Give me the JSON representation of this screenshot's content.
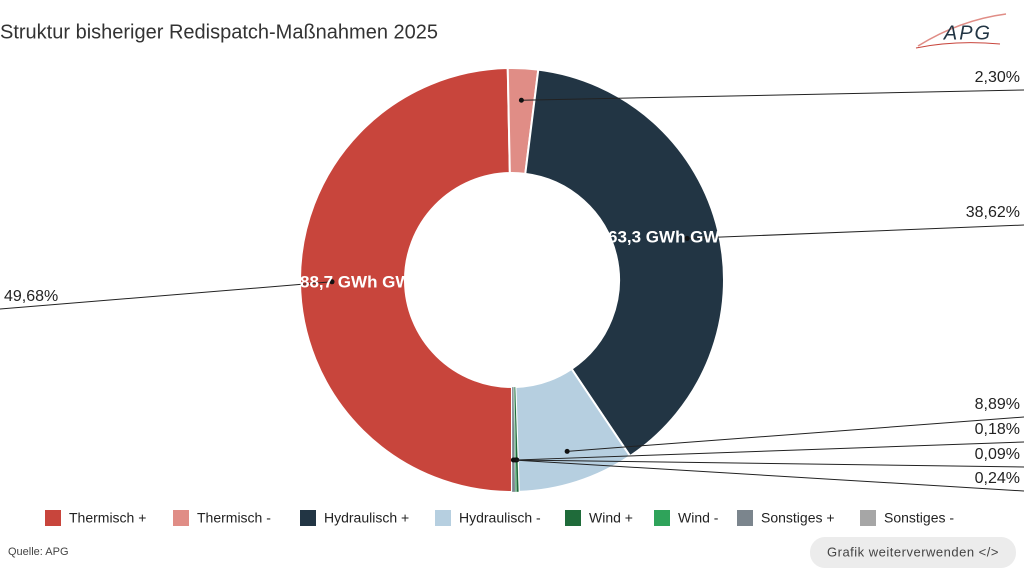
{
  "chart_data": {
    "type": "pie",
    "title": "Struktur bisheriger Redispatch-Maßnahmen 2025",
    "categories": [
      "Thermisch +",
      "Thermisch -",
      "Hydraulisch +",
      "Hydraulisch -",
      "Wind +",
      "Wind -",
      "Sonstiges +",
      "Sonstiges -"
    ],
    "values": [
      49.68,
      2.3,
      38.62,
      8.89,
      0.18,
      0.09,
      0.24,
      0
    ],
    "value_labels": [
      "49,68%",
      "2,30%",
      "38,62%",
      "8,89%",
      "0,18%",
      "0,09%",
      "0,24%",
      null
    ],
    "colors": [
      "#c8453c",
      "#e08d86",
      "#223544",
      "#b6cfe0",
      "#1f6b3a",
      "#2fa35a",
      "#7b858d",
      "#a6a6a6"
    ],
    "annotations": [
      "88,7 GWh GW",
      "63,3 GWh GW"
    ],
    "legend": "bottom"
  },
  "source": "Quelle: APG",
  "logo": "APG",
  "button": "Grafik weiterverwenden </>"
}
